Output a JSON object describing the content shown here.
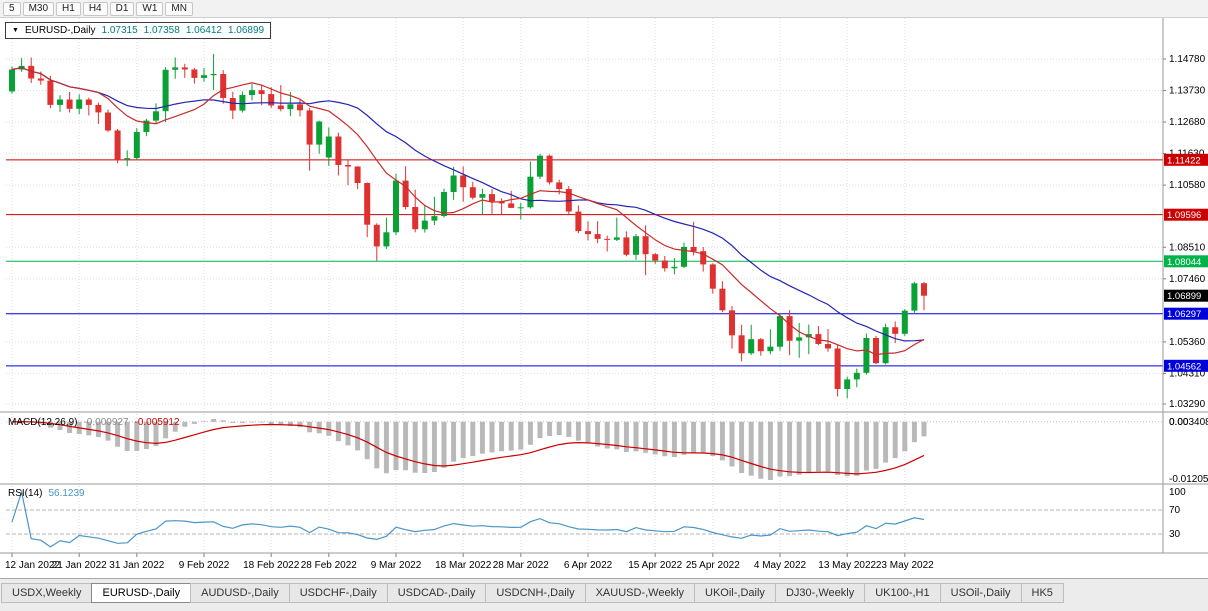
{
  "toolbar": {
    "timeframes": [
      "5",
      "M30",
      "H1",
      "H4",
      "D1",
      "W1",
      "MN"
    ]
  },
  "chart_header": {
    "symbol": "EURUSD-,Daily",
    "open": "1.07315",
    "high": "1.07358",
    "low": "1.06412",
    "close": "1.06899"
  },
  "price_axis": {
    "ticks": [
      "1.14780",
      "1.13730",
      "1.12680",
      "1.11630",
      "1.10580",
      "1.08510",
      "1.07460",
      "1.05360",
      "1.04310",
      "1.03290"
    ]
  },
  "levels": [
    {
      "price": 1.11422,
      "label": "1.11422",
      "color": "#cc0000"
    },
    {
      "price": 1.09596,
      "label": "1.09596",
      "color": "#cc0000"
    },
    {
      "price": 1.08044,
      "label": "1.08044",
      "color": "#00b44a"
    },
    {
      "price": 1.06297,
      "label": "1.06297",
      "color": "#0000dc"
    },
    {
      "price": 1.04562,
      "label": "1.04562",
      "color": "#0000dc"
    }
  ],
  "current_price": {
    "value": 1.06899,
    "label": "1.06899",
    "color": "#000000"
  },
  "macd": {
    "title": "MACD(12,26,9)",
    "value_main": "-0.000927",
    "value_signal": "-0.005912",
    "axis_max": "0.003408",
    "axis_zero": "0.00",
    "axis_min": "-0.012058"
  },
  "rsi": {
    "title": "RSI(14)",
    "value": "56.1239",
    "axis": [
      "100",
      "70",
      "30"
    ],
    "levels": [
      70,
      30
    ]
  },
  "colors": {
    "candle_up": "#09a134",
    "candle_down": "#e03131",
    "ma_fast": "#c92a2a",
    "ma_slow": "#2424b4",
    "macd_histogram": "#b9b9b9",
    "macd_signal": "#cc0000",
    "rsi_line": "#4a96c8",
    "grid": "#dedede",
    "divider": "#9a9a9a",
    "header_values": "#008080"
  },
  "chart_data": {
    "type": "candlestick",
    "title": "EURUSD-,Daily",
    "x_ticks": [
      {
        "i": 0,
        "label": "12 Jan 2022"
      },
      {
        "i": 7,
        "label": "21 Jan 2022"
      },
      {
        "i": 13,
        "label": "31 Jan 2022"
      },
      {
        "i": 20,
        "label": "9 Feb 2022"
      },
      {
        "i": 27,
        "label": "18 Feb 2022"
      },
      {
        "i": 33,
        "label": "28 Feb 2022"
      },
      {
        "i": 40,
        "label": "9 Mar 2022"
      },
      {
        "i": 47,
        "label": "18 Mar 2022"
      },
      {
        "i": 53,
        "label": "28 Mar 2022"
      },
      {
        "i": 60,
        "label": "6 Apr 2022"
      },
      {
        "i": 67,
        "label": "15 Apr 2022"
      },
      {
        "i": 73,
        "label": "25 Apr 2022"
      },
      {
        "i": 80,
        "label": "4 May 2022"
      },
      {
        "i": 87,
        "label": "13 May 2022"
      },
      {
        "i": 93,
        "label": "23 May 2022"
      }
    ],
    "ylim": [
      1.029,
      1.156
    ],
    "overlays": [
      {
        "name": "MA fast",
        "period": 10,
        "color": "#c92a2a"
      },
      {
        "name": "MA slow",
        "period": 21,
        "color": "#2424b4"
      }
    ],
    "indicators": [
      {
        "name": "MACD",
        "params": [
          12,
          26,
          9
        ]
      },
      {
        "name": "RSI",
        "params": [
          14
        ]
      }
    ],
    "ohlc": [
      [
        1.137,
        1.1453,
        1.1362,
        1.1443
      ],
      [
        1.1443,
        1.1481,
        1.1435,
        1.1455
      ],
      [
        1.1455,
        1.1483,
        1.1398,
        1.1413
      ],
      [
        1.1413,
        1.1436,
        1.1392,
        1.1406
      ],
      [
        1.1406,
        1.1422,
        1.1314,
        1.1325
      ],
      [
        1.1325,
        1.1357,
        1.1302,
        1.1343
      ],
      [
        1.1343,
        1.1368,
        1.13,
        1.1312
      ],
      [
        1.1312,
        1.136,
        1.1295,
        1.1343
      ],
      [
        1.1343,
        1.1349,
        1.129,
        1.1325
      ],
      [
        1.1325,
        1.1333,
        1.1262,
        1.13
      ],
      [
        1.13,
        1.131,
        1.1235,
        1.124
      ],
      [
        1.124,
        1.1245,
        1.1131,
        1.1144
      ],
      [
        1.1144,
        1.1174,
        1.1121,
        1.1148
      ],
      [
        1.1148,
        1.1248,
        1.1141,
        1.1235
      ],
      [
        1.1235,
        1.1279,
        1.1221,
        1.1273
      ],
      [
        1.1273,
        1.133,
        1.1265,
        1.1304
      ],
      [
        1.1304,
        1.1451,
        1.1268,
        1.1442
      ],
      [
        1.1442,
        1.1483,
        1.1412,
        1.145
      ],
      [
        1.145,
        1.1462,
        1.1415,
        1.1443
      ],
      [
        1.1443,
        1.1448,
        1.1396,
        1.1415
      ],
      [
        1.1415,
        1.1448,
        1.1402,
        1.1424
      ],
      [
        1.1424,
        1.1495,
        1.1375,
        1.1428
      ],
      [
        1.1428,
        1.1441,
        1.1329,
        1.1348
      ],
      [
        1.1348,
        1.1369,
        1.1278,
        1.1306
      ],
      [
        1.1306,
        1.137,
        1.13,
        1.1358
      ],
      [
        1.1358,
        1.1395,
        1.134,
        1.1374
      ],
      [
        1.1374,
        1.1393,
        1.1324,
        1.1361
      ],
      [
        1.1361,
        1.1384,
        1.1315,
        1.1323
      ],
      [
        1.1323,
        1.1391,
        1.1304,
        1.1311
      ],
      [
        1.1311,
        1.1368,
        1.1288,
        1.1327
      ],
      [
        1.1327,
        1.1342,
        1.1287,
        1.1307
      ],
      [
        1.1307,
        1.1315,
        1.1106,
        1.1193
      ],
      [
        1.1193,
        1.1273,
        1.1163,
        1.127
      ],
      [
        1.115,
        1.125,
        1.1122,
        1.122
      ],
      [
        1.122,
        1.1233,
        1.109,
        1.1125
      ],
      [
        1.1125,
        1.1144,
        1.1058,
        1.112
      ],
      [
        1.112,
        1.1121,
        1.1045,
        1.1065
      ],
      [
        1.1065,
        1.1067,
        1.0885,
        1.0926
      ],
      [
        1.0926,
        1.0931,
        1.0806,
        1.0854
      ],
      [
        1.0854,
        1.095,
        1.0846,
        1.0901
      ],
      [
        1.0901,
        1.1096,
        1.0891,
        1.1073
      ],
      [
        1.1073,
        1.1121,
        1.0977,
        1.0985
      ],
      [
        1.0985,
        1.1043,
        1.0901,
        1.0911
      ],
      [
        1.0911,
        1.0993,
        1.09,
        1.094
      ],
      [
        1.094,
        1.1019,
        1.0925,
        1.0955
      ],
      [
        1.0955,
        1.1046,
        1.095,
        1.1035
      ],
      [
        1.1035,
        1.1119,
        1.1009,
        1.109
      ],
      [
        1.109,
        1.112,
        1.1003,
        1.1051
      ],
      [
        1.1051,
        1.1069,
        1.101,
        1.1016
      ],
      [
        1.1016,
        1.1046,
        1.0962,
        1.1028
      ],
      [
        1.1028,
        1.1044,
        1.0963,
        1.1004
      ],
      [
        1.1004,
        1.1014,
        1.0962,
        1.0997
      ],
      [
        1.0997,
        1.1039,
        1.0981,
        1.0982
      ],
      [
        1.0982,
        1.0999,
        1.0944,
        1.0984
      ],
      [
        1.0984,
        1.1137,
        1.098,
        1.1086
      ],
      [
        1.1086,
        1.1162,
        1.1078,
        1.1156
      ],
      [
        1.1156,
        1.116,
        1.106,
        1.1067
      ],
      [
        1.1067,
        1.1076,
        1.1027,
        1.1045
      ],
      [
        1.1045,
        1.1055,
        1.096,
        1.097
      ],
      [
        1.097,
        1.099,
        1.0898,
        1.0905
      ],
      [
        1.0905,
        1.0938,
        1.0874,
        1.0895
      ],
      [
        1.0895,
        1.0938,
        1.0865,
        1.0879
      ],
      [
        1.0879,
        1.089,
        1.0837,
        1.0876
      ],
      [
        1.0876,
        1.095,
        1.0872,
        1.0884
      ],
      [
        1.0884,
        1.0904,
        1.0821,
        1.0826
      ],
      [
        1.0826,
        1.0895,
        1.0809,
        1.0888
      ],
      [
        1.0888,
        1.0924,
        1.0758,
        1.0828
      ],
      [
        1.0828,
        1.0832,
        1.0796,
        1.0807
      ],
      [
        1.0807,
        1.0822,
        1.077,
        1.0781
      ],
      [
        1.0781,
        1.0815,
        1.0761,
        1.0786
      ],
      [
        1.0786,
        1.0867,
        1.0782,
        1.0852
      ],
      [
        1.0852,
        1.0936,
        1.0824,
        1.0838
      ],
      [
        1.0838,
        1.0852,
        1.077,
        1.0794
      ],
      [
        1.0794,
        1.0798,
        1.0697,
        1.0713
      ],
      [
        1.0713,
        1.0738,
        1.0635,
        1.0641
      ],
      [
        1.0641,
        1.0655,
        1.0514,
        1.0558
      ],
      [
        1.0558,
        1.0593,
        1.0471,
        1.0498
      ],
      [
        1.0498,
        1.0593,
        1.0492,
        1.0545
      ],
      [
        1.0545,
        1.0549,
        1.049,
        1.0505
      ],
      [
        1.0505,
        1.0578,
        1.0495,
        1.052
      ],
      [
        1.052,
        1.0631,
        1.0507,
        1.0622
      ],
      [
        1.0622,
        1.0642,
        1.0492,
        1.054
      ],
      [
        1.054,
        1.0599,
        1.0483,
        1.0551
      ],
      [
        1.0551,
        1.0594,
        1.0495,
        1.0562
      ],
      [
        1.0562,
        1.0589,
        1.0525,
        1.0529
      ],
      [
        1.0529,
        1.0579,
        1.0503,
        1.0514
      ],
      [
        1.0514,
        1.0525,
        1.0354,
        1.0379
      ],
      [
        1.0379,
        1.042,
        1.0348,
        1.0411
      ],
      [
        1.0411,
        1.0447,
        1.0385,
        1.0433
      ],
      [
        1.0433,
        1.0564,
        1.0427,
        1.0549
      ],
      [
        1.0549,
        1.0556,
        1.0462,
        1.0465
      ],
      [
        1.0465,
        1.0597,
        1.0461,
        1.0585
      ],
      [
        1.0585,
        1.0604,
        1.0532,
        1.0563
      ],
      [
        1.0563,
        1.0645,
        1.0556,
        1.064
      ],
      [
        1.064,
        1.0736,
        1.0633,
        1.0731
      ],
      [
        1.07315,
        1.07358,
        1.06412,
        1.06899
      ]
    ]
  },
  "tabs": [
    {
      "label": "USDX,Weekly"
    },
    {
      "label": "EURUSD-,Daily",
      "active": true
    },
    {
      "label": "AUDUSD-,Daily"
    },
    {
      "label": "USDCHF-,Daily"
    },
    {
      "label": "USDCAD-,Daily"
    },
    {
      "label": "USDCNH-,Daily"
    },
    {
      "label": "XAUUSD-,Weekly"
    },
    {
      "label": "UKOil-,Daily"
    },
    {
      "label": "DJ30-,Weekly"
    },
    {
      "label": "UK100-,H1"
    },
    {
      "label": "USOil-,Daily"
    },
    {
      "label": "HK5"
    }
  ]
}
